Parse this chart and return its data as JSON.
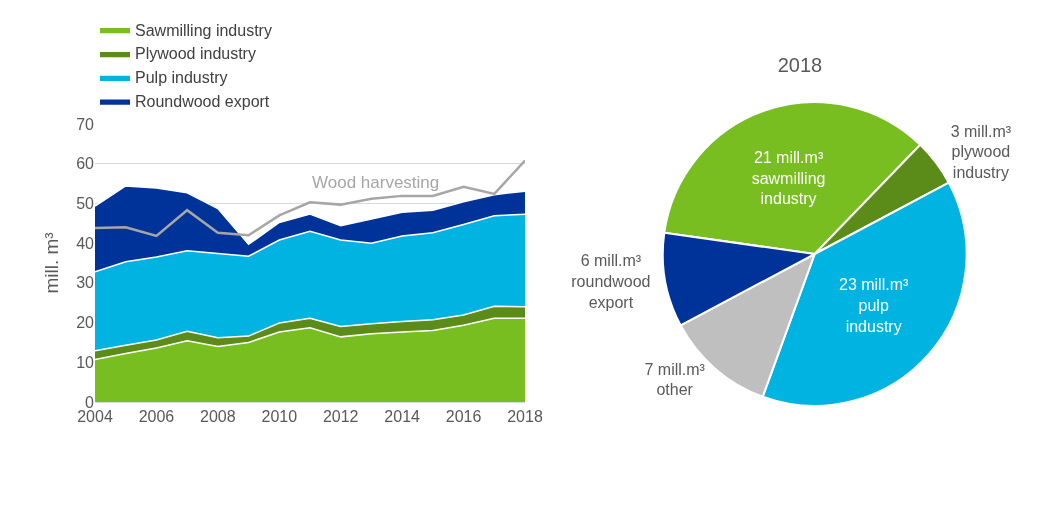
{
  "chart_data": [
    {
      "type": "area",
      "stacked": true,
      "ylabel": "mill. m³",
      "x": [
        2004,
        2005,
        2006,
        2007,
        2008,
        2009,
        2010,
        2011,
        2012,
        2013,
        2014,
        2015,
        2016,
        2017,
        2018
      ],
      "xlim": [
        2004,
        2018
      ],
      "xticks": [
        2004,
        2006,
        2008,
        2010,
        2012,
        2014,
        2016,
        2018
      ],
      "ylim": [
        0,
        70
      ],
      "yticks": [
        0,
        10,
        20,
        30,
        40,
        50,
        60,
        70
      ],
      "grid": "y",
      "legend": "top",
      "series": [
        {
          "name": "Sawmilling industry",
          "color": "#78be20",
          "values": [
            10.7,
            12.2,
            13.6,
            15.4,
            14.0,
            15.0,
            17.6,
            18.7,
            16.4,
            17.2,
            17.6,
            18.0,
            19.3,
            21.1,
            21.1
          ]
        },
        {
          "name": "Plywood industry",
          "color": "#5b8c1a",
          "values": [
            2.2,
            2.1,
            2.0,
            2.4,
            2.2,
            1.6,
            2.3,
            2.4,
            2.6,
            2.5,
            2.7,
            2.7,
            2.6,
            3.0,
            2.9
          ]
        },
        {
          "name": "Pulp industry",
          "color": "#00b3e0",
          "values": [
            19.9,
            21.0,
            20.9,
            20.3,
            21.2,
            20.1,
            20.9,
            21.9,
            21.8,
            20.3,
            21.5,
            21.9,
            22.8,
            22.8,
            23.3
          ]
        },
        {
          "name": "Roundwood export",
          "color": "#003399",
          "values": [
            16.5,
            19.1,
            17.4,
            14.6,
            11.3,
            3.0,
            4.4,
            4.3,
            3.6,
            6.1,
            6.0,
            5.7,
            5.7,
            5.3,
            5.8
          ]
        },
        {
          "name": "Wood harvesting",
          "type": "line",
          "color": "#a6a6a6",
          "values": [
            43.8,
            44.0,
            41.8,
            48.3,
            42.6,
            42.0,
            47.0,
            50.3,
            49.7,
            51.2,
            51.9,
            51.9,
            54.2,
            52.4,
            60.8
          ]
        }
      ]
    },
    {
      "type": "pie",
      "title": "2018",
      "categories": [
        "sawmilling industry",
        "plywood industry",
        "pulp industry",
        "other",
        "roundwood export"
      ],
      "values": [
        21,
        3,
        23,
        7,
        6
      ],
      "value_labels": [
        "21 mill.m³",
        "3 mill.m³",
        "23 mill.m³",
        "7 mill.m³",
        "6 mill.m³"
      ],
      "colors": [
        "#78be20",
        "#5b8c1a",
        "#00b3e0",
        "#bfbfbf",
        "#003399"
      ],
      "legend": false
    }
  ]
}
